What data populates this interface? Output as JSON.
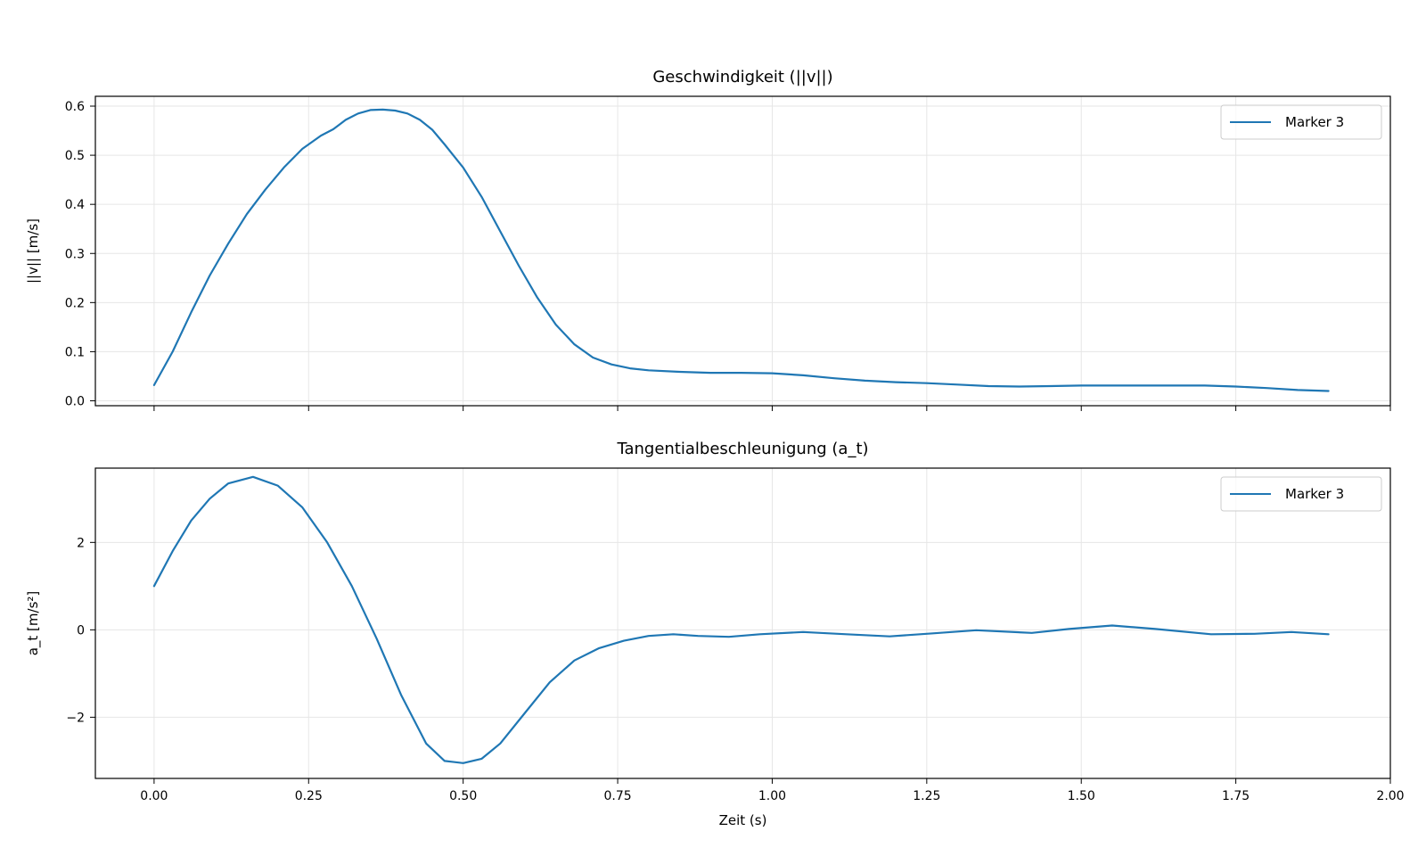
{
  "chart_data": [
    {
      "type": "line",
      "title": "Geschwindigkeit (||v||)",
      "xlabel": "",
      "ylabel": "||v|| [m/s]",
      "xlim": [
        -0.095,
        2.0
      ],
      "ylim": [
        -0.01,
        0.62
      ],
      "xticks": [
        0.0,
        0.25,
        0.5,
        0.75,
        1.0,
        1.25,
        1.5,
        1.75,
        2.0
      ],
      "xtick_labels": [],
      "yticks": [
        0.0,
        0.1,
        0.2,
        0.3,
        0.4,
        0.5,
        0.6
      ],
      "ytick_labels": [
        "0.0",
        "0.1",
        "0.2",
        "0.3",
        "0.4",
        "0.5",
        "0.6"
      ],
      "grid": true,
      "legend": "top-right",
      "series": [
        {
          "name": "Marker 3",
          "color": "#1f77b4",
          "x": [
            0.0,
            0.03,
            0.06,
            0.09,
            0.12,
            0.15,
            0.18,
            0.21,
            0.24,
            0.27,
            0.29,
            0.31,
            0.33,
            0.35,
            0.37,
            0.39,
            0.41,
            0.43,
            0.45,
            0.47,
            0.5,
            0.53,
            0.56,
            0.59,
            0.62,
            0.65,
            0.68,
            0.71,
            0.74,
            0.77,
            0.8,
            0.85,
            0.9,
            0.95,
            1.0,
            1.05,
            1.1,
            1.15,
            1.2,
            1.25,
            1.3,
            1.35,
            1.4,
            1.45,
            1.5,
            1.55,
            1.6,
            1.65,
            1.7,
            1.75,
            1.8,
            1.85,
            1.9
          ],
          "y": [
            0.032,
            0.1,
            0.18,
            0.255,
            0.32,
            0.38,
            0.43,
            0.475,
            0.513,
            0.54,
            0.553,
            0.572,
            0.585,
            0.592,
            0.593,
            0.591,
            0.585,
            0.572,
            0.552,
            0.522,
            0.475,
            0.415,
            0.345,
            0.275,
            0.21,
            0.155,
            0.115,
            0.088,
            0.074,
            0.066,
            0.062,
            0.059,
            0.057,
            0.057,
            0.056,
            0.052,
            0.046,
            0.041,
            0.038,
            0.036,
            0.033,
            0.03,
            0.029,
            0.03,
            0.031,
            0.031,
            0.031,
            0.031,
            0.031,
            0.029,
            0.026,
            0.022,
            0.02
          ]
        }
      ]
    },
    {
      "type": "line",
      "title": "Tangentialbeschleunigung (a_t)",
      "xlabel": "Zeit (s)",
      "ylabel": "a_t [m/s²]",
      "xlim": [
        -0.095,
        2.0
      ],
      "ylim": [
        -3.4,
        3.7
      ],
      "xticks": [
        0.0,
        0.25,
        0.5,
        0.75,
        1.0,
        1.25,
        1.5,
        1.75,
        2.0
      ],
      "xtick_labels": [
        "0.00",
        "0.25",
        "0.50",
        "0.75",
        "1.00",
        "1.25",
        "1.50",
        "1.75",
        "2.00"
      ],
      "yticks": [
        -2,
        0,
        2
      ],
      "ytick_labels": [
        "−2",
        "0",
        "2"
      ],
      "grid": true,
      "legend": "top-right",
      "series": [
        {
          "name": "Marker 3",
          "color": "#1f77b4",
          "x": [
            0.0,
            0.03,
            0.06,
            0.09,
            0.12,
            0.16,
            0.2,
            0.24,
            0.28,
            0.32,
            0.36,
            0.4,
            0.44,
            0.47,
            0.5,
            0.53,
            0.56,
            0.6,
            0.64,
            0.68,
            0.72,
            0.76,
            0.8,
            0.84,
            0.88,
            0.93,
            0.98,
            1.05,
            1.12,
            1.19,
            1.26,
            1.33,
            1.42,
            1.48,
            1.55,
            1.62,
            1.71,
            1.78,
            1.84,
            1.9
          ],
          "y": [
            1.0,
            1.8,
            2.5,
            3.0,
            3.35,
            3.5,
            3.3,
            2.8,
            2.0,
            1.0,
            -0.2,
            -1.5,
            -2.6,
            -3.0,
            -3.05,
            -2.95,
            -2.6,
            -1.9,
            -1.2,
            -0.7,
            -0.42,
            -0.25,
            -0.14,
            -0.1,
            -0.14,
            -0.16,
            -0.1,
            -0.05,
            -0.1,
            -0.15,
            -0.08,
            -0.01,
            -0.07,
            0.02,
            0.1,
            0.02,
            -0.1,
            -0.09,
            -0.05,
            -0.1
          ]
        }
      ]
    }
  ]
}
